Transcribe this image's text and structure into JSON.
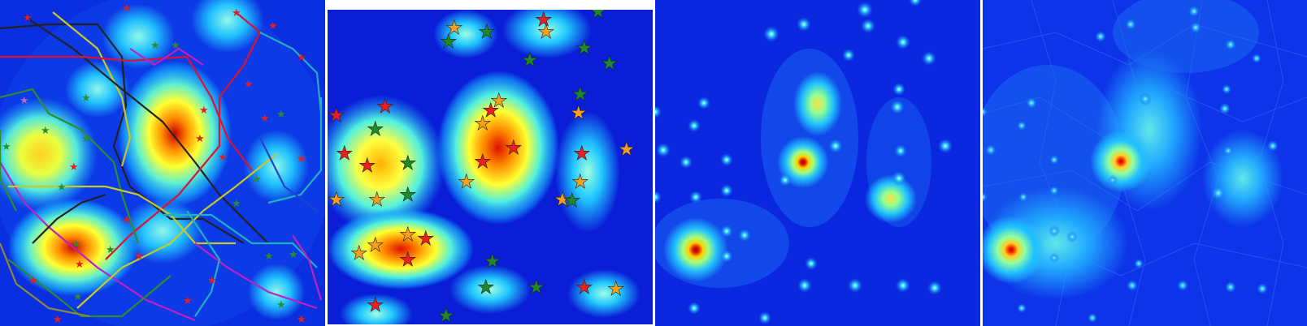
{
  "figure": {
    "panels": [
      {
        "id": "panel-1",
        "content": "density heatmap with colored route lines and star markers",
        "background": "#0a2fe0",
        "route_colors": [
          "#222222",
          "#c8c82a",
          "#2e8b2e",
          "#e01030",
          "#c020c0",
          "#20b0c0",
          "#8a8a3a",
          "#2040d0"
        ],
        "marker_colors": [
          "#e02020",
          "#2e8b2e",
          "#c060c0"
        ]
      },
      {
        "id": "panel-2",
        "content": "density heatmap with star markers",
        "background": "#0a1ed8",
        "marker_colors": {
          "red": "#e82020",
          "orange": "#f5a020",
          "green": "#1f8a2a"
        }
      },
      {
        "id": "panel-3",
        "content": "density heatmap with point sources",
        "background": "#0b2ce6"
      },
      {
        "id": "panel-4",
        "content": "density heatmap with point sources and faceted background",
        "background": "#0d34e8"
      }
    ],
    "colormap": [
      "#00008f",
      "#0a2ee6",
      "#1ab8ff",
      "#7ff2c8",
      "#ffff30",
      "#ff8a00",
      "#e00000"
    ]
  }
}
